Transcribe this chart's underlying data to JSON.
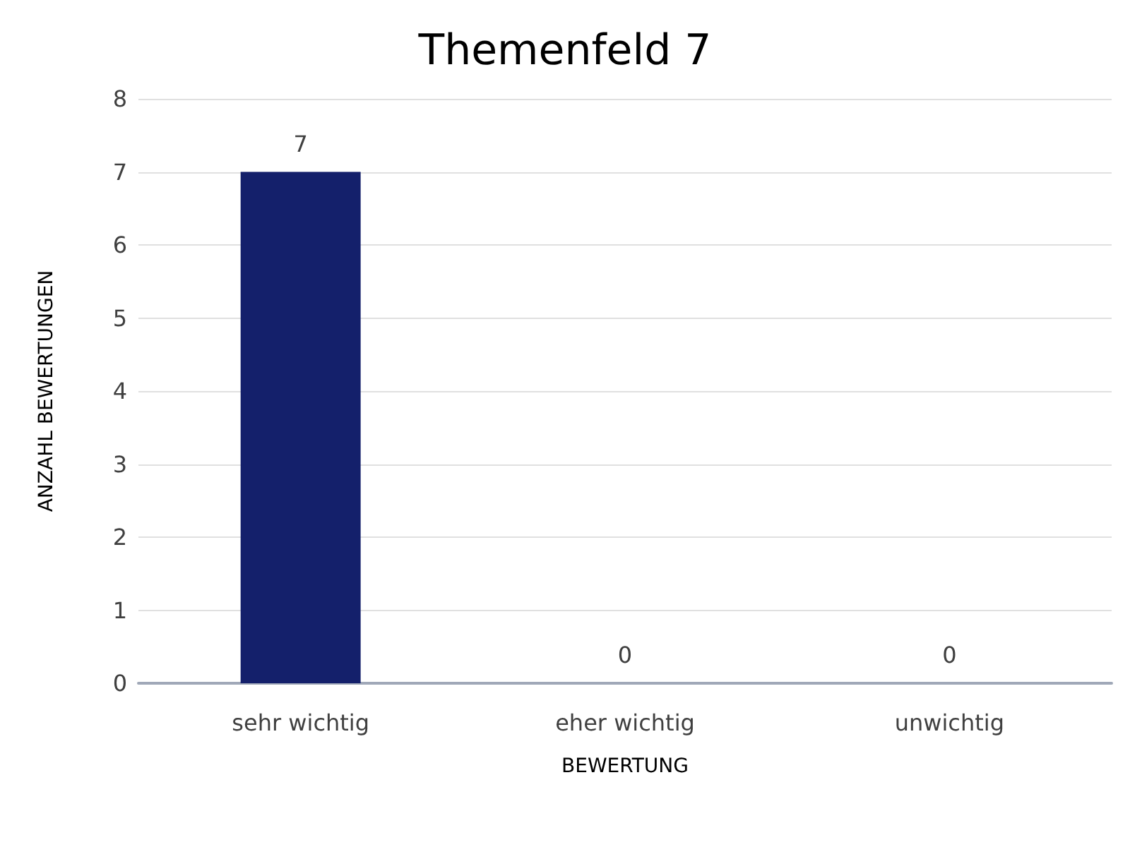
{
  "chart_data": {
    "type": "bar",
    "title": "Themenfeld 7",
    "xlabel": "BEWERTUNG",
    "ylabel": "ANZAHL BEWERTUNGEN",
    "categories": [
      "sehr wichtig",
      "eher wichtig",
      "unwichtig"
    ],
    "values": [
      7,
      0,
      0
    ],
    "color": "#14206b",
    "ylim": [
      0,
      8
    ],
    "yticks": [
      0,
      1,
      2,
      3,
      4,
      5,
      6,
      7,
      8
    ],
    "grid": "y",
    "data_labels": true
  }
}
